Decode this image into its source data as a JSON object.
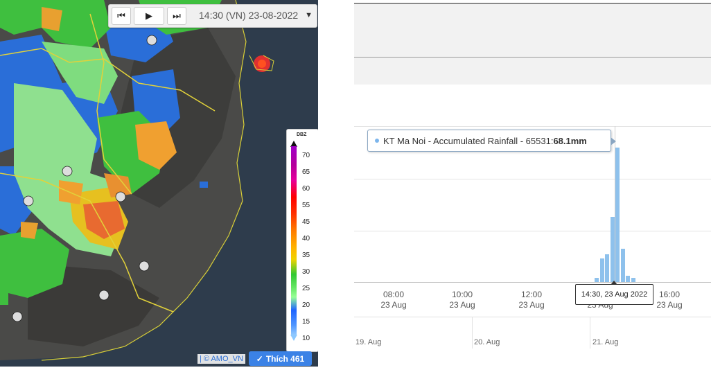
{
  "map": {
    "toolbar": {
      "first_icon": "skip-back-icon",
      "play_icon": "play-icon",
      "last_icon": "skip-forward-icon",
      "time_label": "14:30 (VN) 23-08-2022",
      "dropdown_icon": "chevron-down-icon"
    },
    "legend": {
      "unit": "DBZ",
      "ticks": [
        "70",
        "65",
        "60",
        "55",
        "45",
        "40",
        "35",
        "30",
        "25",
        "20",
        "15",
        "10"
      ]
    },
    "credit": "| © AMO_VN",
    "like_button": {
      "icon": "check-icon",
      "label": "Thích 461"
    }
  },
  "chart": {
    "tooltip": {
      "series": "KT Ma Noi - Accumulated Rainfall - 65531: ",
      "value": "68.1mm",
      "color": "#7cb5ec"
    },
    "x_tooltip": "14:30, 23 Aug 2022",
    "x_ticks": [
      {
        "time": "08:00",
        "date": "23 Aug"
      },
      {
        "time": "10:00",
        "date": "23 Aug"
      },
      {
        "time": "12:00",
        "date": "23 Aug"
      },
      {
        "time": "",
        "date": "23 Aug"
      },
      {
        "time": "16:00",
        "date": "23 Aug"
      }
    ],
    "navigator_ticks": [
      "19. Aug",
      "20. Aug",
      "21. Aug"
    ]
  },
  "chart_data": {
    "type": "bar",
    "series": [
      {
        "name": "KT Ma Noi - Accumulated Rainfall - 65531",
        "unit": "mm",
        "values": [
          2,
          12,
          14,
          33,
          68.1,
          17,
          3,
          2
        ]
      }
    ]
  }
}
